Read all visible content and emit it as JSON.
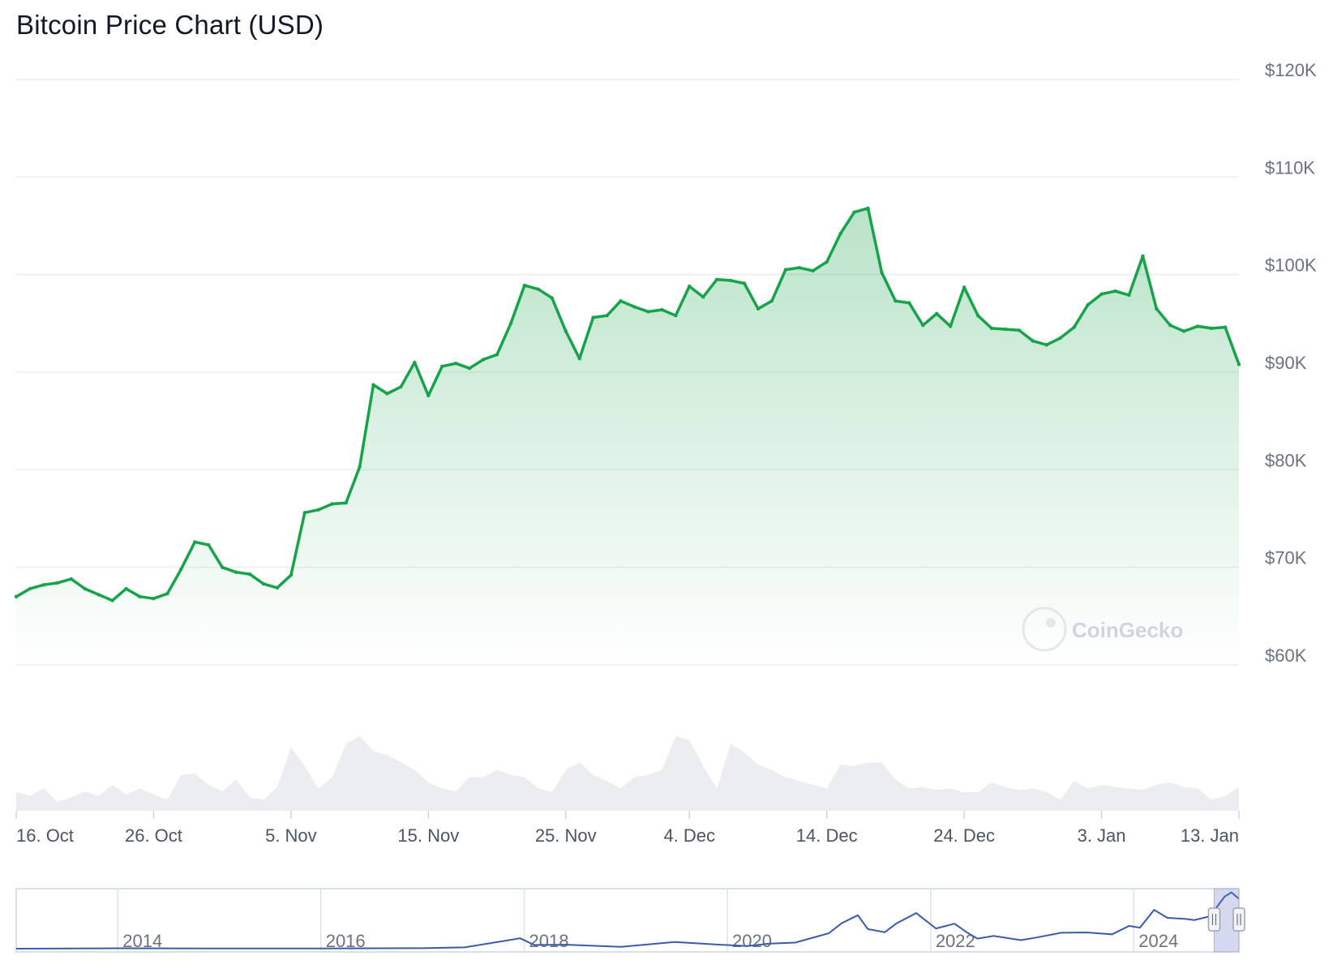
{
  "title": "Bitcoin Price Chart (USD)",
  "watermark": "CoinGecko",
  "chart_data": {
    "type": "area",
    "title": "Bitcoin Price Chart (USD)",
    "series_color": "#16a34a",
    "y_ticks": [
      {
        "value": 60000,
        "label": "$60K"
      },
      {
        "value": 70000,
        "label": "$70K"
      },
      {
        "value": 80000,
        "label": "$80K"
      },
      {
        "value": 90000,
        "label": "$90K"
      },
      {
        "value": 100000,
        "label": "$100K"
      },
      {
        "value": 110000,
        "label": "$110K"
      },
      {
        "value": 120000,
        "label": "$120K"
      }
    ],
    "ylim": [
      60000,
      120000
    ],
    "x_range": [
      "2024-10-16",
      "2025-01-13"
    ],
    "x_ticks": [
      {
        "date": "2024-10-16",
        "label": "16. Oct"
      },
      {
        "date": "2024-10-26",
        "label": "26. Oct"
      },
      {
        "date": "2024-11-05",
        "label": "5. Nov"
      },
      {
        "date": "2024-11-15",
        "label": "15. Nov"
      },
      {
        "date": "2024-11-25",
        "label": "25. Nov"
      },
      {
        "date": "2024-12-04",
        "label": "4. Dec"
      },
      {
        "date": "2024-12-14",
        "label": "14. Dec"
      },
      {
        "date": "2024-12-24",
        "label": "24. Dec"
      },
      {
        "date": "2025-01-03",
        "label": "3. Jan"
      },
      {
        "date": "2025-01-13",
        "label": "13. Jan"
      }
    ],
    "price": {
      "dates": [
        "2024-10-16",
        "2024-10-17",
        "2024-10-18",
        "2024-10-19",
        "2024-10-20",
        "2024-10-21",
        "2024-10-22",
        "2024-10-23",
        "2024-10-24",
        "2024-10-25",
        "2024-10-26",
        "2024-10-27",
        "2024-10-28",
        "2024-10-29",
        "2024-10-30",
        "2024-10-31",
        "2024-11-01",
        "2024-11-02",
        "2024-11-03",
        "2024-11-04",
        "2024-11-05",
        "2024-11-06",
        "2024-11-07",
        "2024-11-08",
        "2024-11-09",
        "2024-11-10",
        "2024-11-11",
        "2024-11-12",
        "2024-11-13",
        "2024-11-14",
        "2024-11-15",
        "2024-11-16",
        "2024-11-17",
        "2024-11-18",
        "2024-11-19",
        "2024-11-20",
        "2024-11-21",
        "2024-11-22",
        "2024-11-23",
        "2024-11-24",
        "2024-11-25",
        "2024-11-26",
        "2024-11-27",
        "2024-11-28",
        "2024-11-29",
        "2024-11-30",
        "2024-12-01",
        "2024-12-02",
        "2024-12-03",
        "2024-12-04",
        "2024-12-05",
        "2024-12-06",
        "2024-12-07",
        "2024-12-08",
        "2024-12-09",
        "2024-12-10",
        "2024-12-11",
        "2024-12-12",
        "2024-12-13",
        "2024-12-14",
        "2024-12-15",
        "2024-12-16",
        "2024-12-17",
        "2024-12-18",
        "2024-12-19",
        "2024-12-20",
        "2024-12-21",
        "2024-12-22",
        "2024-12-23",
        "2024-12-24",
        "2024-12-25",
        "2024-12-26",
        "2024-12-27",
        "2024-12-28",
        "2024-12-29",
        "2024-12-30",
        "2024-12-31",
        "2025-01-01",
        "2025-01-02",
        "2025-01-03",
        "2025-01-04",
        "2025-01-05",
        "2025-01-06",
        "2025-01-07",
        "2025-01-08",
        "2025-01-09",
        "2025-01-10",
        "2025-01-11",
        "2025-01-12",
        "2025-01-13"
      ],
      "values": [
        67000,
        67800,
        68200,
        68400,
        68800,
        67800,
        67200,
        66600,
        67800,
        67000,
        66800,
        67300,
        69800,
        72600,
        72300,
        70000,
        69500,
        69300,
        68300,
        67900,
        69200,
        75600,
        75900,
        76500,
        76600,
        80300,
        88700,
        87800,
        88500,
        91000,
        87600,
        90600,
        90900,
        90400,
        91300,
        91800,
        95000,
        98900,
        98500,
        97600,
        94200,
        91400,
        95600,
        95800,
        97300,
        96700,
        96200,
        96400,
        95800,
        98800,
        97700,
        99500,
        99400,
        99100,
        96500,
        97300,
        100500,
        100700,
        100400,
        101300,
        104200,
        106400,
        106800,
        100200,
        97300,
        97100,
        94800,
        96000,
        94700,
        98700,
        95800,
        94500,
        94400,
        94300,
        93200,
        92800,
        93500,
        94600,
        96900,
        98000,
        98300,
        97900,
        101900,
        96500,
        94800,
        94200,
        94700,
        94500,
        94600,
        90800
      ]
    },
    "volume_relative": [
      0.25,
      0.2,
      0.3,
      0.12,
      0.18,
      0.26,
      0.2,
      0.35,
      0.22,
      0.3,
      0.22,
      0.15,
      0.48,
      0.5,
      0.35,
      0.26,
      0.42,
      0.18,
      0.15,
      0.32,
      0.85,
      0.6,
      0.3,
      0.45,
      0.9,
      1.0,
      0.8,
      0.75,
      0.65,
      0.55,
      0.38,
      0.3,
      0.26,
      0.45,
      0.45,
      0.55,
      0.48,
      0.45,
      0.3,
      0.25,
      0.55,
      0.65,
      0.48,
      0.4,
      0.3,
      0.45,
      0.48,
      0.55,
      1.0,
      0.95,
      0.6,
      0.3,
      0.9,
      0.78,
      0.62,
      0.55,
      0.45,
      0.4,
      0.35,
      0.3,
      0.62,
      0.6,
      0.65,
      0.65,
      0.42,
      0.3,
      0.32,
      0.28,
      0.3,
      0.25,
      0.25,
      0.38,
      0.32,
      0.28,
      0.3,
      0.25,
      0.15,
      0.4,
      0.3,
      0.35,
      0.32,
      0.3,
      0.28,
      0.35,
      0.38,
      0.32,
      0.3,
      0.15,
      0.2,
      0.32
    ],
    "navigator": {
      "x_labels": [
        "2014",
        "2016",
        "2018",
        "2020",
        "2022",
        "2024"
      ],
      "x_range": [
        "2013-01-01",
        "2025-01-13"
      ],
      "ylim": [
        0,
        110000
      ],
      "series_color": "#3b5ba9",
      "selected_range": [
        "2024-10-16",
        "2025-01-13"
      ],
      "dates": [
        "2013-01-01",
        "2014-01-01",
        "2015-01-01",
        "2016-01-01",
        "2017-01-01",
        "2017-06-01",
        "2017-12-17",
        "2018-02-06",
        "2018-06-01",
        "2018-12-15",
        "2019-06-26",
        "2019-12-15",
        "2020-03-13",
        "2020-06-01",
        "2020-09-01",
        "2020-12-31",
        "2021-02-15",
        "2021-04-14",
        "2021-05-20",
        "2021-07-20",
        "2021-09-01",
        "2021-11-10",
        "2022-01-20",
        "2022-03-28",
        "2022-05-10",
        "2022-06-18",
        "2022-08-15",
        "2022-11-21",
        "2023-01-15",
        "2023-04-15",
        "2023-07-15",
        "2023-10-15",
        "2023-12-15",
        "2024-01-23",
        "2024-03-14",
        "2024-05-01",
        "2024-07-05",
        "2024-08-05",
        "2024-10-01",
        "2024-11-22",
        "2024-12-17",
        "2025-01-13"
      ],
      "values": [
        13,
        800,
        320,
        430,
        960,
        2400,
        19500,
        7000,
        7500,
        3300,
        12500,
        7200,
        4900,
        9600,
        11500,
        29000,
        48000,
        63000,
        37000,
        31000,
        48000,
        67000,
        38000,
        47000,
        31000,
        19000,
        24000,
        16000,
        21000,
        30000,
        30500,
        27000,
        43000,
        39500,
        73000,
        58000,
        56000,
        54000,
        61000,
        98000,
        106000,
        94000
      ]
    }
  }
}
